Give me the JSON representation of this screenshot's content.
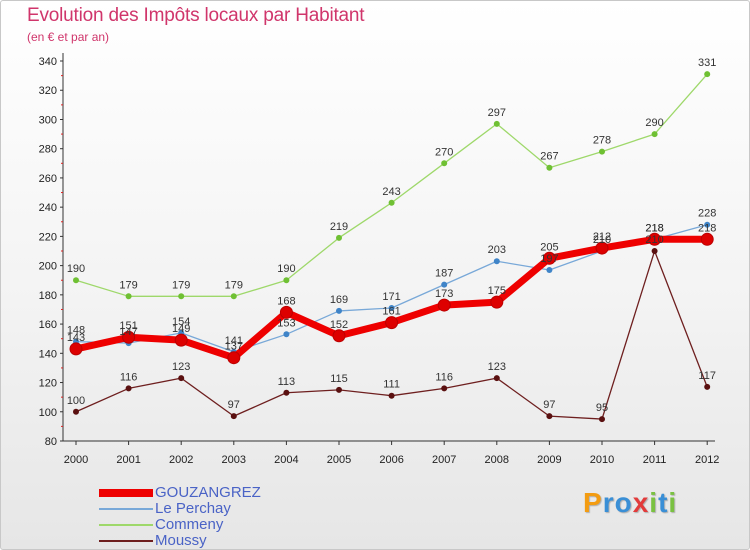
{
  "header": {
    "title": "Evolution des Impôts locaux par Habitant",
    "subtitle": "(en € et par an)"
  },
  "branding": {
    "logo_text": "Proxiti",
    "logo_letters": [
      {
        "ch": "P",
        "color": "#f39c12"
      },
      {
        "ch": "r",
        "color": "#3a8fd6"
      },
      {
        "ch": "o",
        "color": "#3a8fd6"
      },
      {
        "ch": "x",
        "color": "#e23b3b"
      },
      {
        "ch": "i",
        "color": "#7ac142"
      },
      {
        "ch": "t",
        "color": "#3a8fd6"
      },
      {
        "ch": "i",
        "color": "#7ac142"
      }
    ]
  },
  "chart_data": {
    "type": "line",
    "title": "Evolution des Impôts locaux par Habitant",
    "subtitle": "(en € et par an)",
    "xlabel": "",
    "ylabel": "",
    "x": [
      "2000",
      "2001",
      "2002",
      "2003",
      "2004",
      "2005",
      "2006",
      "2007",
      "2008",
      "2009",
      "2010",
      "2011",
      "2012"
    ],
    "ylim": [
      80,
      340
    ],
    "yticks": [
      80,
      100,
      120,
      140,
      160,
      180,
      200,
      220,
      240,
      260,
      280,
      300,
      320,
      340
    ],
    "grid": false,
    "legend_position": "bottom-left",
    "series": [
      {
        "name": "Moussy",
        "color": "#6e1f1f",
        "marker": "#5a1010",
        "width": 1.3,
        "values": [
          100,
          116,
          123,
          97,
          113,
          115,
          111,
          116,
          123,
          97,
          95,
          210,
          117
        ],
        "labels": [
          "100",
          "116",
          "123",
          "97",
          "113",
          "115",
          "111",
          "116",
          "123",
          "97",
          "95",
          "210",
          "117"
        ]
      },
      {
        "name": "Commeny",
        "color": "#9ed86a",
        "marker": "#6fc033",
        "width": 1.3,
        "values": [
          190,
          179,
          179,
          179,
          190,
          219,
          243,
          270,
          297,
          267,
          278,
          290,
          331
        ],
        "labels": [
          "190",
          "179",
          "179",
          "179",
          "190",
          "219",
          "243",
          "270",
          "297",
          "267",
          "278",
          "290",
          "331"
        ]
      },
      {
        "name": "Le Perchay",
        "color": "#78a8d8",
        "marker": "#3f84c8",
        "width": 1.3,
        "values": [
          148,
          147,
          154,
          141,
          153,
          169,
          171,
          187,
          203,
          197,
          210,
          218,
          228
        ],
        "labels": [
          "148",
          "147",
          "154",
          "141",
          "153",
          "169",
          "171",
          "187",
          "203",
          "197",
          "210",
          "218",
          "228"
        ]
      },
      {
        "name": "GOUZANGREZ",
        "color": "#ee0000",
        "marker": "#dd0000",
        "width": 7,
        "values": [
          143,
          151,
          149,
          137,
          168,
          152,
          161,
          173,
          175,
          205,
          212,
          218,
          218
        ],
        "labels": [
          "143",
          "151",
          "149",
          "137",
          "168",
          "152",
          "161",
          "173",
          "175",
          "205",
          "212",
          "218",
          "218"
        ]
      }
    ],
    "legend": [
      "GOUZANGREZ",
      "Le Perchay",
      "Commeny",
      "Moussy"
    ]
  }
}
